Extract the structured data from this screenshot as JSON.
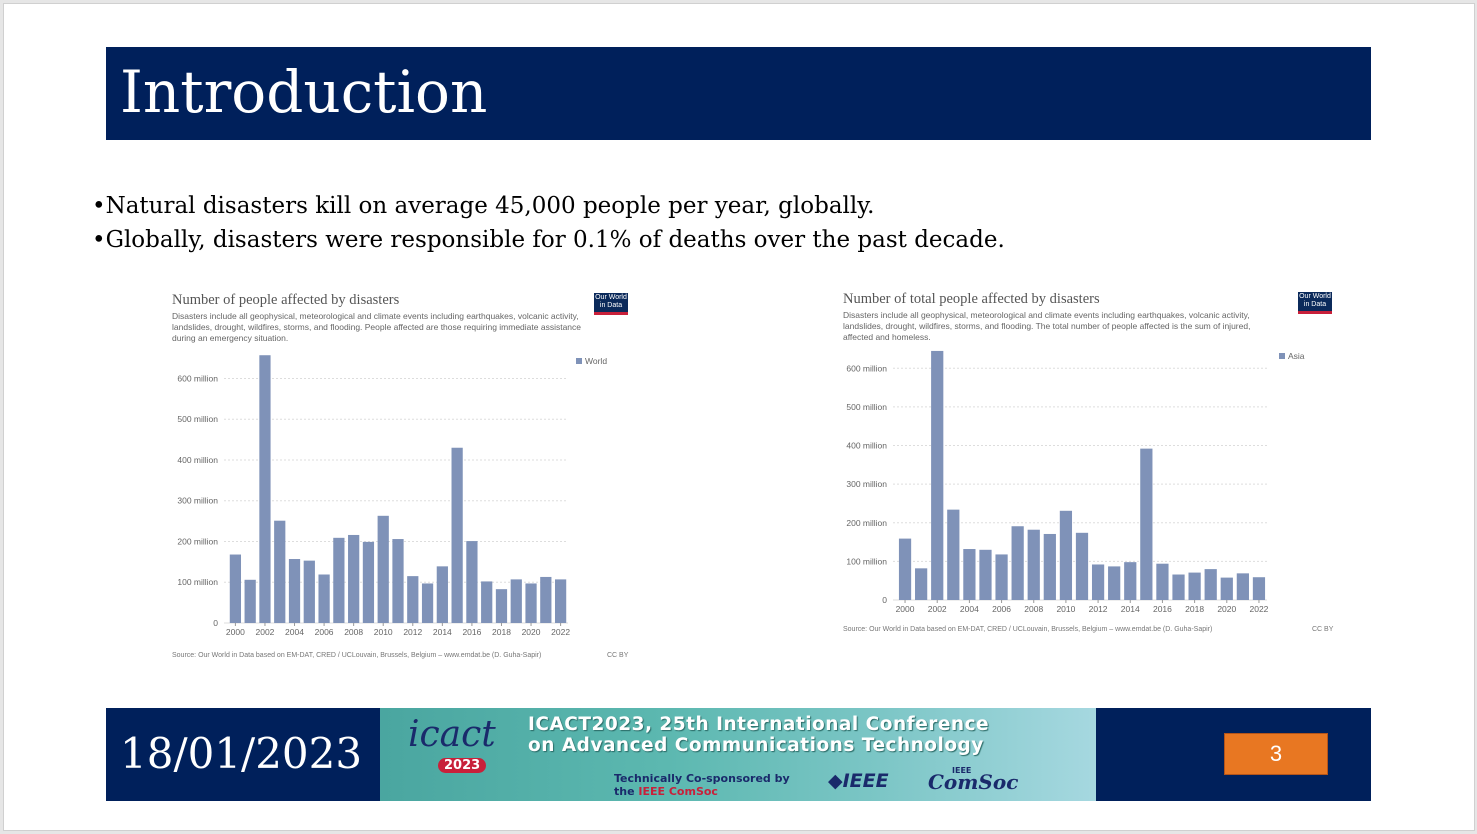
{
  "slide": {
    "title": "Introduction",
    "bullets": [
      "•Natural disasters kill on average 45,000 people per year, globally.",
      "•Globally, disasters were responsible for 0.1% of deaths over the past decade."
    ]
  },
  "owid_logo": {
    "line1": "Our World",
    "line2": "in Data"
  },
  "chart_data": [
    {
      "type": "bar",
      "title": "Number of people affected by disasters",
      "subtitle": "Disasters include all geophysical, meteorological and climate events including earthquakes, volcanic activity, landslides, drought, wildfires, storms, and flooding. People affected are those requiring immediate assistance during an emergency situation.",
      "legend": "World",
      "legend_position": "top-right",
      "categories": [
        "2000",
        "2001",
        "2002",
        "2003",
        "2004",
        "2005",
        "2006",
        "2007",
        "2008",
        "2009",
        "2010",
        "2011",
        "2012",
        "2013",
        "2014",
        "2015",
        "2016",
        "2017",
        "2018",
        "2019",
        "2020",
        "2021",
        "2022"
      ],
      "x_tick_labels": [
        "2000",
        "2002",
        "2004",
        "2006",
        "2008",
        "2010",
        "2012",
        "2014",
        "2016",
        "2018",
        "2020",
        "2022"
      ],
      "values": [
        168,
        106,
        657,
        251,
        157,
        153,
        119,
        209,
        216,
        199,
        263,
        206,
        115,
        97,
        139,
        430,
        201,
        102,
        83,
        107,
        97,
        113,
        107
      ],
      "ylim": [
        0,
        660
      ],
      "y_ticks": [
        0,
        100,
        200,
        300,
        400,
        500,
        600
      ],
      "y_tick_labels": [
        "0",
        "100 million",
        "200 million",
        "300 million",
        "400 million",
        "500 million",
        "600 million"
      ],
      "grid": true,
      "bar_color": "#7f92b8",
      "source": "Source: Our World in Data based on EM-DAT, CRED / UCLouvain, Brussels, Belgium – www.emdat.be (D. Guha-Sapir)",
      "license": "CC BY"
    },
    {
      "type": "bar",
      "title": "Number of total people affected by disasters",
      "subtitle": "Disasters include all geophysical, meteorological and climate events including earthquakes, volcanic activity, landslides, drought, wildfires, storms, and flooding. The total number of people affected is the sum of injured, affected and homeless.",
      "legend": "Asia",
      "legend_position": "top-right",
      "categories": [
        "2000",
        "2001",
        "2002",
        "2003",
        "2004",
        "2005",
        "2006",
        "2007",
        "2008",
        "2009",
        "2010",
        "2011",
        "2012",
        "2013",
        "2014",
        "2015",
        "2016",
        "2017",
        "2018",
        "2019",
        "2020",
        "2021",
        "2022"
      ],
      "x_tick_labels": [
        "2000",
        "2002",
        "2004",
        "2006",
        "2008",
        "2010",
        "2012",
        "2014",
        "2016",
        "2018",
        "2020",
        "2022"
      ],
      "values": [
        159,
        82,
        645,
        234,
        132,
        130,
        118,
        191,
        182,
        171,
        231,
        174,
        92,
        87,
        98,
        392,
        94,
        66,
        71,
        80,
        58,
        69,
        59
      ],
      "ylim": [
        0,
        650
      ],
      "y_ticks": [
        0,
        100,
        200,
        300,
        400,
        500,
        600
      ],
      "y_tick_labels": [
        "0",
        "100 million",
        "200 million",
        "300 million",
        "400 million",
        "500 million",
        "600 million"
      ],
      "grid": true,
      "bar_color": "#7f92b8",
      "source": "Source: Our World in Data based on EM-DAT, CRED / UCLouvain, Brussels, Belgium – www.emdat.be (D. Guha-Sapir)",
      "license": "CC BY"
    }
  ],
  "footer": {
    "date": "18/01/2023",
    "page_number": "3",
    "banner": {
      "logo_text": "icact",
      "logo_year": "2023",
      "line1": "ICACT2023, 25th International Conference",
      "line2": "on Advanced Communications Technology",
      "sponsor_line1": "Technically Co-sponsored by",
      "sponsor_line2_prefix": "the ",
      "sponsor_line2_org": "IEEE ComSoc",
      "ieee": "◆IEEE",
      "comsoc": "ComSoc",
      "comsoc_sup": "IEEE"
    }
  }
}
